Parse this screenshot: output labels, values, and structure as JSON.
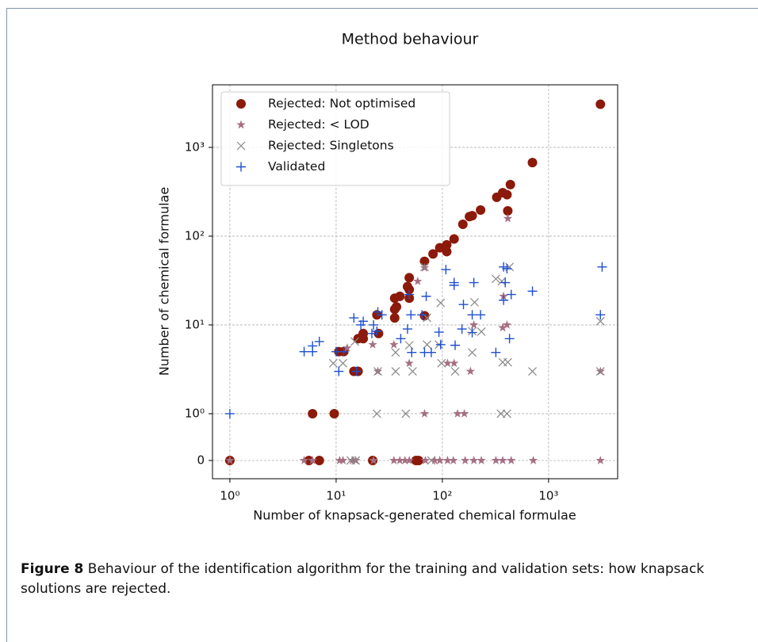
{
  "chart_data": {
    "type": "scatter",
    "title": "Method behaviour",
    "xlabel": "Number of knapsack-generated chemical formulae",
    "ylabel": "Number of chemical formulae",
    "xscale": "log",
    "yscale": "symlog",
    "linthresh": 1,
    "linscale": 0.527,
    "xlim": [
      0.686,
      4470
    ],
    "ylim": [
      -0.39,
      5070
    ],
    "xticks": [
      {
        "value": 1,
        "label": "10⁰"
      },
      {
        "value": 10,
        "label": "10¹"
      },
      {
        "value": 100,
        "label": "10²"
      },
      {
        "value": 1000,
        "label": "10³"
      }
    ],
    "yticks": [
      0,
      {
        "value": 1,
        "label": "10⁰"
      },
      {
        "value": 10,
        "label": "10¹"
      },
      {
        "value": 100,
        "label": "10²"
      },
      {
        "value": 1000,
        "label": "10³"
      }
    ],
    "grid": true,
    "legend": "upper left",
    "series": [
      {
        "name": "Rejected: Not optimised",
        "color": "#8b1a0a",
        "marker": "circle",
        "x": [
          1,
          6,
          9.6,
          10.6,
          11.8,
          14.7,
          16.1,
          16.1,
          18,
          18,
          24.2,
          25.1,
          22.1,
          35.6,
          37,
          35.6,
          39.8,
          48.8,
          47,
          48.8,
          48.8,
          35.6,
          68,
          68,
          81.7,
          94.6,
          110,
          110,
          129,
          156,
          180,
          191,
          229,
          325,
          370,
          406,
          437,
          413,
          705,
          3076,
          56.5,
          59.7,
          5.54,
          6.95
        ],
        "values": [
          0,
          1,
          1,
          5,
          5,
          3,
          3,
          7,
          7,
          8,
          13,
          8,
          0,
          15,
          16,
          20,
          21,
          34,
          27,
          25,
          20,
          12,
          12.7,
          52,
          63,
          74,
          80,
          67,
          93,
          136,
          166,
          170,
          197,
          274,
          309,
          293,
          381,
          193,
          675,
          3060,
          0,
          0,
          0,
          0
        ]
      },
      {
        "name": "Rejected: < LOD",
        "color": "#a66f83",
        "marker": "star",
        "x": [
          1,
          5,
          6,
          10.8,
          11.6,
          14.2,
          15.3,
          22.5,
          35,
          39.8,
          44.5,
          48.8,
          69.2,
          84.7,
          94.6,
          112,
          127,
          164,
          198,
          233,
          319,
          370,
          445,
          718,
          3076,
          12.7,
          22.1,
          24.7,
          35,
          48.8,
          58.6,
          68,
          68,
          112,
          129,
          139,
          161,
          184,
          198,
          370,
          406,
          377,
          413,
          3076
        ],
        "values": [
          0,
          0,
          0,
          0,
          0,
          0,
          0,
          0,
          0,
          0,
          0,
          0,
          0,
          0,
          0,
          0,
          0,
          0,
          0,
          0,
          0,
          0,
          0,
          0,
          0,
          5.5,
          6,
          3,
          6,
          3.7,
          31,
          44,
          1,
          3.7,
          3.7,
          1,
          1,
          3,
          10,
          9.3,
          10,
          21,
          158,
          3
        ]
      },
      {
        "name": "Rejected: Singletons",
        "color": "#888888",
        "marker": "x",
        "x": [
          9.4,
          11.6,
          15,
          24.7,
          36.3,
          36.3,
          52.5,
          24.2,
          45.3,
          48.8,
          71.8,
          92.9,
          71.8,
          96.4,
          98.2,
          132,
          201,
          191,
          233,
          191,
          319,
          363,
          370,
          413,
          356,
          406,
          429,
          705,
          3076,
          3076,
          68,
          13.7,
          15.3,
          78.7
        ],
        "values": [
          3.7,
          3.7,
          6.5,
          3,
          4.9,
          3,
          3,
          1,
          1,
          5.9,
          6,
          6,
          12,
          17.7,
          3.7,
          3,
          18,
          8.5,
          8.4,
          4.9,
          33,
          31,
          3.8,
          3.8,
          1,
          1,
          45,
          3,
          11,
          3,
          45,
          0,
          0,
          0
        ]
      },
      {
        "name": "Validated",
        "color": "#1f4fd1",
        "marker": "plus",
        "x": [
          1,
          5,
          6,
          6,
          6.95,
          10,
          11.8,
          10.6,
          15.6,
          14.7,
          17.1,
          18,
          22.5,
          24.7,
          21.7,
          24.2,
          27,
          40.6,
          47,
          50.6,
          64.3,
          70.5,
          48.8,
          51.5,
          68,
          78.7,
          92.9,
          96.4,
          108,
          129,
          129,
          132,
          153,
          158,
          198,
          191,
          191,
          229,
          377,
          406,
          391,
          445,
          429,
          377,
          319,
          705,
          3192,
          3076
        ],
        "values": [
          1,
          5,
          5,
          5.8,
          6.5,
          5,
          5,
          3,
          3,
          12,
          10,
          11,
          10,
          14,
          8,
          8.5,
          13,
          7,
          9,
          13,
          13,
          21,
          22,
          4.9,
          4.9,
          4.9,
          8.3,
          6,
          42,
          28,
          30,
          5.9,
          9,
          17,
          30,
          13,
          8.2,
          13,
          45,
          43,
          30,
          22,
          7,
          19,
          4.9,
          24,
          45,
          13
        ]
      }
    ]
  },
  "caption": {
    "label": "Figure 8",
    "text": "Behaviour of the identification algorithm for the training and validation sets: how knapsack solutions are rejected."
  }
}
